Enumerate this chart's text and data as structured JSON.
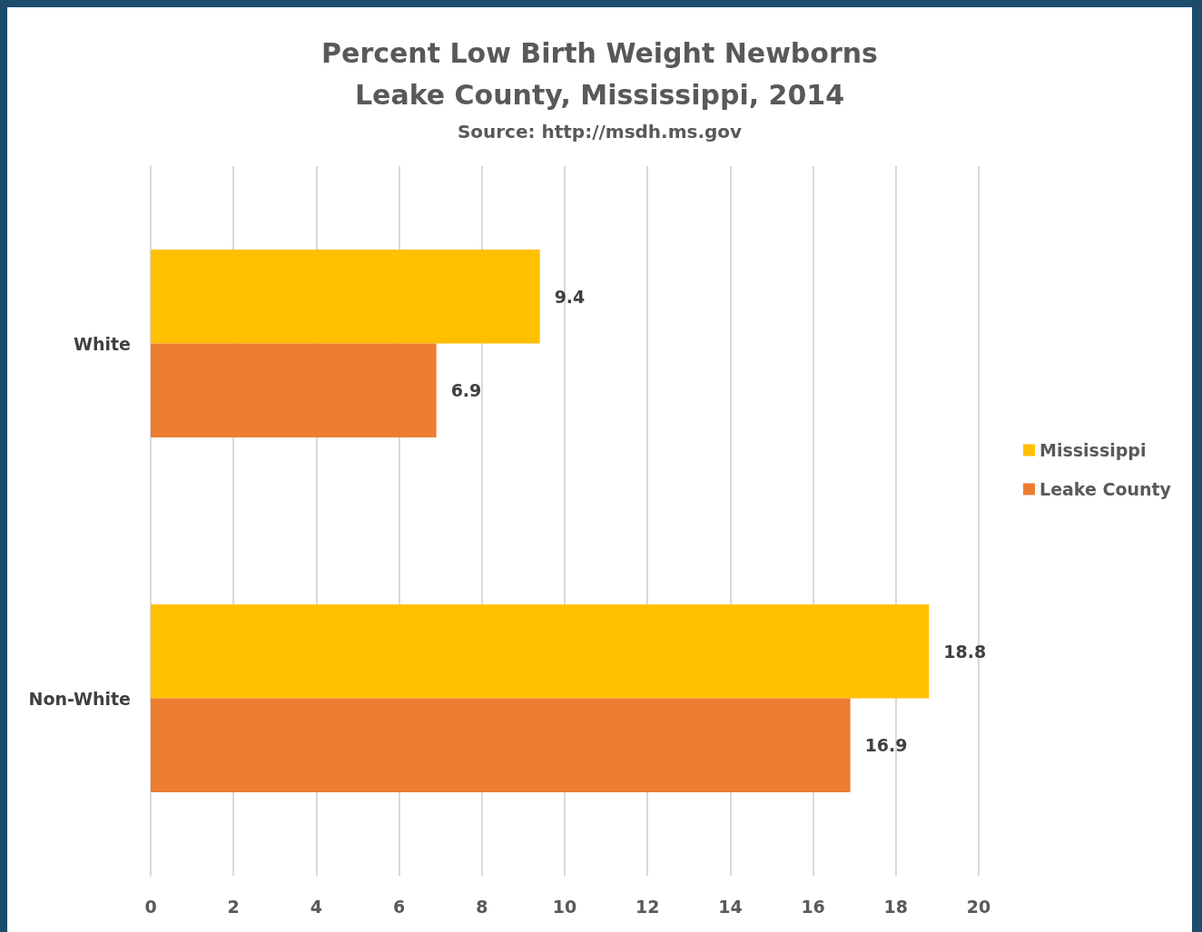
{
  "chart_data": {
    "type": "bar",
    "orientation": "horizontal",
    "title": "Percent Low Birth Weight Newborns\nLeake County, Mississippi, 2014",
    "annotations": [
      "Source: http://msdh.ms.gov"
    ],
    "categories": [
      "White",
      "Non-White"
    ],
    "series": [
      {
        "name": "Mississippi",
        "color": "#ffc000",
        "values": [
          9.4,
          18.8
        ]
      },
      {
        "name": "Leake County",
        "color": "#ed7d31",
        "values": [
          6.9,
          16.9
        ]
      }
    ],
    "xlim": [
      0,
      20
    ],
    "xticks": [
      0,
      2,
      4,
      6,
      8,
      10,
      12,
      14,
      16,
      18,
      20
    ],
    "grid": "x",
    "legend": "right",
    "data_labels": true
  }
}
